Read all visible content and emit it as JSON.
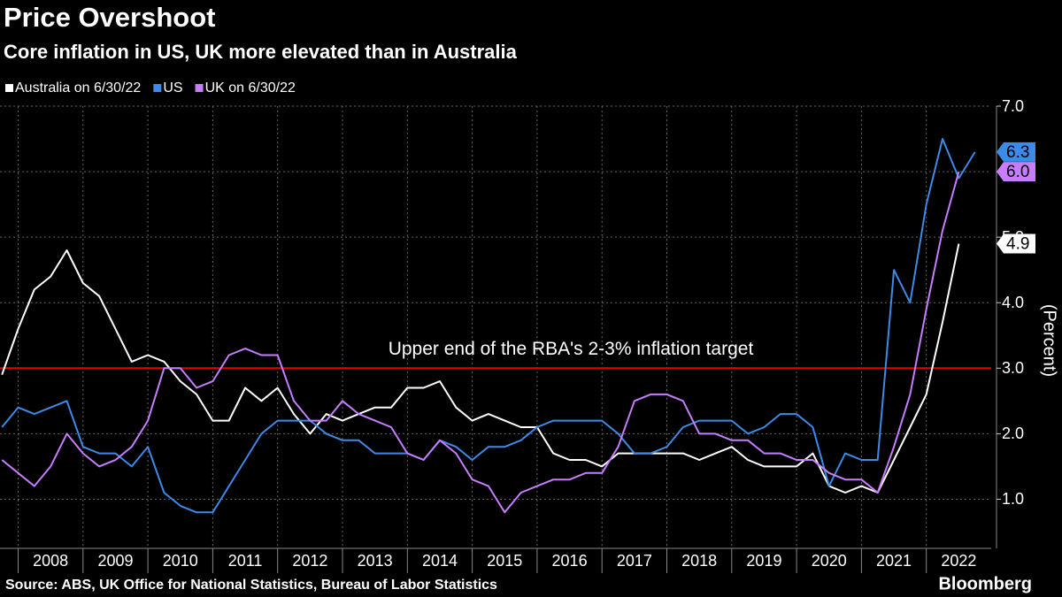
{
  "chart_data": {
    "type": "line",
    "title": "Price Overshoot",
    "subtitle": "Core inflation in US, UK more elevated than in Australia",
    "source": "Source: ABS, UK Office for National Statistics, Bureau of Labor Statistics",
    "brand": "Bloomberg",
    "y_label": "(Percent)",
    "x": [
      2007.75,
      2008,
      2008.25,
      2008.5,
      2008.75,
      2009,
      2009.25,
      2009.5,
      2009.75,
      2010,
      2010.25,
      2010.5,
      2010.75,
      2011,
      2011.25,
      2011.5,
      2011.75,
      2012,
      2012.25,
      2012.5,
      2012.75,
      2013,
      2013.25,
      2013.5,
      2013.75,
      2014,
      2014.25,
      2014.5,
      2014.75,
      2015,
      2015.25,
      2015.5,
      2015.75,
      2016,
      2016.25,
      2016.5,
      2016.75,
      2017,
      2017.25,
      2017.5,
      2017.75,
      2018,
      2018.25,
      2018.5,
      2018.75,
      2019,
      2019.25,
      2019.5,
      2019.75,
      2020,
      2020.25,
      2020.5,
      2020.75,
      2021,
      2021.25,
      2021.5,
      2021.75,
      2022,
      2022.25,
      2022.5,
      2022.75
    ],
    "series": [
      {
        "name": "Australia on 6/30/22",
        "color": "#ffffff",
        "values": [
          2.9,
          3.6,
          4.2,
          4.4,
          4.8,
          4.3,
          4.1,
          3.6,
          3.1,
          3.2,
          3.1,
          2.8,
          2.6,
          2.2,
          2.2,
          2.7,
          2.5,
          2.7,
          2.3,
          2.0,
          2.3,
          2.2,
          2.3,
          2.4,
          2.4,
          2.7,
          2.7,
          2.8,
          2.4,
          2.2,
          2.3,
          2.2,
          2.1,
          2.1,
          1.7,
          1.6,
          1.6,
          1.5,
          1.7,
          1.7,
          1.7,
          1.7,
          1.7,
          1.6,
          1.7,
          1.8,
          1.6,
          1.5,
          1.5,
          1.5,
          1.7,
          1.2,
          1.1,
          1.2,
          1.1,
          1.6,
          2.1,
          2.6,
          3.7,
          4.9,
          null
        ],
        "value_labels": [
          null,
          null,
          null,
          null,
          null,
          null,
          null,
          null,
          null,
          null,
          null,
          null,
          null,
          null,
          null,
          null,
          null,
          null,
          null,
          null,
          null,
          null,
          null,
          null,
          null,
          null,
          null,
          null,
          null,
          null,
          null,
          null,
          null,
          null,
          null,
          null,
          null,
          null,
          null,
          null,
          null,
          null,
          null,
          null,
          null,
          null,
          null,
          null,
          null,
          null,
          null,
          null,
          null,
          null,
          null,
          null,
          null,
          null,
          null,
          "4.9",
          null
        ]
      },
      {
        "name": "US",
        "color": "#3d8ae8",
        "values": [
          2.1,
          2.4,
          2.3,
          2.4,
          2.5,
          1.8,
          1.7,
          1.7,
          1.5,
          1.8,
          1.1,
          0.9,
          0.8,
          0.8,
          1.2,
          1.6,
          2.0,
          2.2,
          2.2,
          2.2,
          2.0,
          1.9,
          1.9,
          1.7,
          1.7,
          1.7,
          1.6,
          1.9,
          1.8,
          1.6,
          1.8,
          1.8,
          1.9,
          2.1,
          2.2,
          2.2,
          2.2,
          2.2,
          2.0,
          1.7,
          1.7,
          1.8,
          2.1,
          2.2,
          2.2,
          2.2,
          2.0,
          2.1,
          2.3,
          2.3,
          2.1,
          1.2,
          1.7,
          1.6,
          1.6,
          4.5,
          4.0,
          5.5,
          6.5,
          5.9,
          6.3
        ],
        "value_labels": [
          null,
          null,
          null,
          null,
          null,
          null,
          null,
          null,
          null,
          null,
          null,
          null,
          null,
          null,
          null,
          null,
          null,
          null,
          null,
          null,
          null,
          null,
          null,
          null,
          null,
          null,
          null,
          null,
          null,
          null,
          null,
          null,
          null,
          null,
          null,
          null,
          null,
          null,
          null,
          null,
          null,
          null,
          null,
          null,
          null,
          null,
          null,
          null,
          null,
          null,
          null,
          null,
          null,
          null,
          null,
          null,
          null,
          null,
          null,
          null,
          "6.3"
        ]
      },
      {
        "name": "UK on 6/30/22",
        "color": "#c67dff",
        "values": [
          1.6,
          1.4,
          1.2,
          1.5,
          2.0,
          1.7,
          1.5,
          1.6,
          1.8,
          2.2,
          3.0,
          3.0,
          2.7,
          2.8,
          3.2,
          3.3,
          3.2,
          3.2,
          2.5,
          2.2,
          2.2,
          2.5,
          2.3,
          2.2,
          2.1,
          1.7,
          1.6,
          1.9,
          1.7,
          1.3,
          1.2,
          0.8,
          1.1,
          1.2,
          1.3,
          1.3,
          1.4,
          1.4,
          1.8,
          2.5,
          2.6,
          2.6,
          2.5,
          2.0,
          2.0,
          1.9,
          1.9,
          1.7,
          1.7,
          1.6,
          1.6,
          1.4,
          1.3,
          1.3,
          1.1,
          1.8,
          2.6,
          3.9,
          5.1,
          6.0,
          null
        ],
        "value_labels": [
          null,
          null,
          null,
          null,
          null,
          null,
          null,
          null,
          null,
          null,
          null,
          null,
          null,
          null,
          null,
          null,
          null,
          null,
          null,
          null,
          null,
          null,
          null,
          null,
          null,
          null,
          null,
          null,
          null,
          null,
          null,
          null,
          null,
          null,
          null,
          null,
          null,
          null,
          null,
          null,
          null,
          null,
          null,
          null,
          null,
          null,
          null,
          null,
          null,
          null,
          null,
          null,
          null,
          null,
          null,
          null,
          null,
          null,
          null,
          "6.0",
          null
        ]
      }
    ],
    "annotations": [
      {
        "text": "Upper end of the RBA's 2-3% inflation target",
        "y": 3,
        "color": "#e00000"
      }
    ],
    "xlim": [
      2007.72,
      2023.0
    ],
    "xticks": [
      2008,
      2009,
      2010,
      2011,
      2012,
      2013,
      2014,
      2015,
      2016,
      2017,
      2018,
      2019,
      2020,
      2021,
      2022
    ],
    "ylim": [
      0.25,
      7.0
    ],
    "yticks": [
      {
        "value": 1,
        "label": "1.0"
      },
      {
        "value": 2,
        "label": "2.0"
      },
      {
        "value": 3,
        "label": "3.0"
      },
      {
        "value": 4,
        "label": "4.0"
      },
      {
        "value": 5,
        "label": "5.0"
      },
      {
        "value": 6,
        "label": "6.0"
      },
      {
        "value": 7,
        "label": "7.0"
      }
    ],
    "grid": true,
    "y_axis_side": "right",
    "legend": "top-left"
  }
}
